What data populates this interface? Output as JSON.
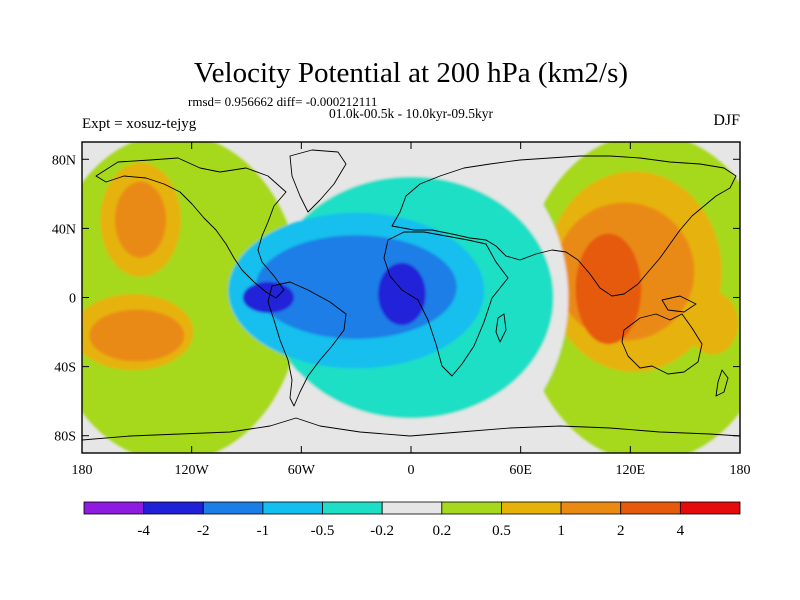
{
  "chart_data": {
    "type": "contour-map",
    "title": "Velocity Potential at 200 hPa (km2/s)",
    "stats": "rmsd= 0.956662 diff= -0.000212111",
    "period": "01.0k-00.5k - 10.0kyr-09.5kyr",
    "experiment": "Expt = xosuz-tejyg",
    "season": "DJF",
    "xlim": [
      -180,
      180
    ],
    "ylim": [
      -90,
      90
    ],
    "x_ticks": [
      {
        "value": -180,
        "label": "180"
      },
      {
        "value": -120,
        "label": "120W"
      },
      {
        "value": -60,
        "label": "60W"
      },
      {
        "value": 0,
        "label": "0"
      },
      {
        "value": 60,
        "label": "60E"
      },
      {
        "value": 120,
        "label": "120E"
      },
      {
        "value": 180,
        "label": "180"
      }
    ],
    "y_ticks": [
      {
        "value": 80,
        "label": "80N"
      },
      {
        "value": 40,
        "label": "40N"
      },
      {
        "value": 0,
        "label": "0"
      },
      {
        "value": -40,
        "label": "40S"
      },
      {
        "value": -80,
        "label": "80S"
      }
    ],
    "colorbar": {
      "colors": [
        "#8f1be0",
        "#2020d8",
        "#1a7ee6",
        "#12bfee",
        "#1edfc6",
        "#e6e6e6",
        "#a6d81e",
        "#e6b20a",
        "#ea8a12",
        "#e65a0c",
        "#e60a0a"
      ],
      "labels": [
        "-4",
        "-2",
        "-1",
        "-0.5",
        "-0.2",
        "0.2",
        "0.5",
        "1",
        "2",
        "4"
      ]
    },
    "regions": [
      {
        "level": "0.2 to 0.5",
        "color": "#a6d81e",
        "lon": -130,
        "lat": 0,
        "rx": 70,
        "ry": 95
      },
      {
        "level": "0.2 to 0.5",
        "color": "#a6d81e",
        "lon": 130,
        "lat": 0,
        "rx": 70,
        "ry": 95
      },
      {
        "level": "0.5 to 1",
        "color": "#e6b20a",
        "lon": -148,
        "lat": 45,
        "rx": 22,
        "ry": 33
      },
      {
        "level": "1 to 2",
        "color": "#ea8a12",
        "lon": -148,
        "lat": 45,
        "rx": 14,
        "ry": 22
      },
      {
        "level": "0.5 to 1",
        "color": "#e6b20a",
        "lon": -152,
        "lat": -20,
        "rx": 33,
        "ry": 22
      },
      {
        "level": "1 to 2",
        "color": "#ea8a12",
        "lon": -150,
        "lat": -22,
        "rx": 26,
        "ry": 15
      },
      {
        "level": "0.5 to 1",
        "color": "#e6b20a",
        "lon": 122,
        "lat": 15,
        "rx": 48,
        "ry": 58
      },
      {
        "level": "1 to 2",
        "color": "#ea8a12",
        "lon": 117,
        "lat": 15,
        "rx": 38,
        "ry": 40
      },
      {
        "level": "2 to 4",
        "color": "#e65a0c",
        "lon": 108,
        "lat": 5,
        "rx": 18,
        "ry": 32
      },
      {
        "level": "0.5 to 1",
        "color": "#e6b20a",
        "lon": 165,
        "lat": -15,
        "rx": 14,
        "ry": 18
      },
      {
        "level": "-0.2 to 0.2",
        "color": "#e6e6e6",
        "lon": 8,
        "lat": 0,
        "rx": 78,
        "ry": 95
      },
      {
        "level": "-0.5 to -0.2",
        "color": "#1edfc6",
        "lon": 0,
        "lat": 0,
        "rx": 78,
        "ry": 70
      },
      {
        "level": "-1 to -0.5",
        "color": "#12bfee",
        "lon": -30,
        "lat": 4,
        "rx": 70,
        "ry": 45
      },
      {
        "level": "-2 to -1",
        "color": "#1a7ee6",
        "lon": -30,
        "lat": 6,
        "rx": 55,
        "ry": 30
      },
      {
        "level": "-4 to -2",
        "color": "#2020d8",
        "lon": -78,
        "lat": 0,
        "rx": 14,
        "ry": 9
      },
      {
        "level": "-4 to -2",
        "color": "#2020d8",
        "lon": -5,
        "lat": 2,
        "rx": 13,
        "ry": 18
      }
    ]
  }
}
